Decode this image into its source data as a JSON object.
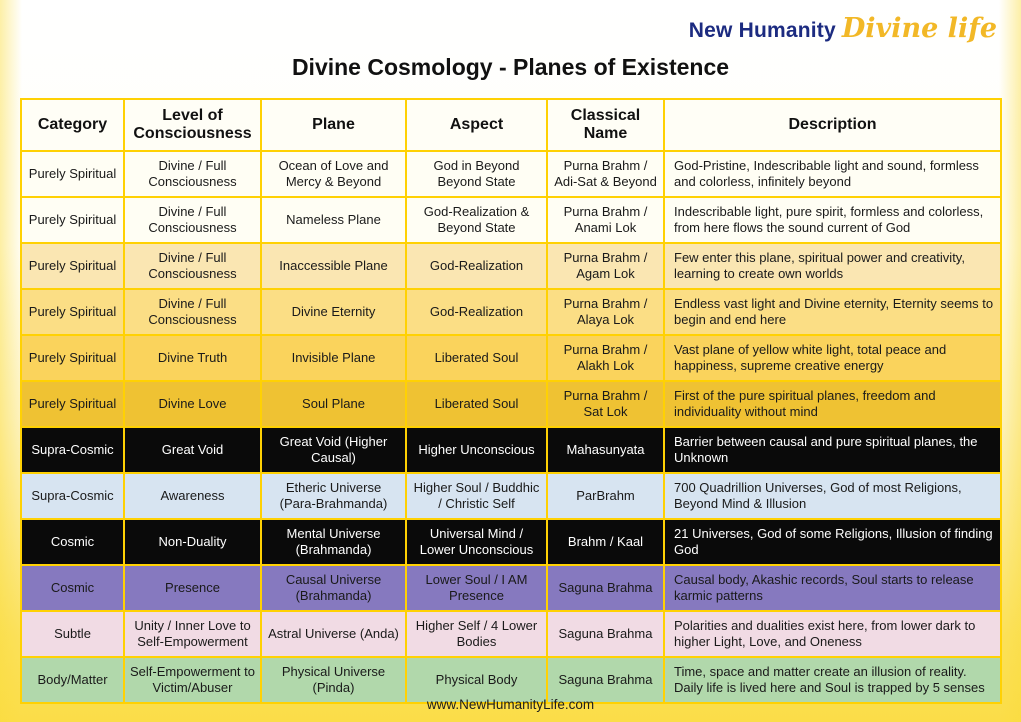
{
  "logo": {
    "brand": "New Humanity",
    "script": "Divine life",
    "brand_color": "#1c2b80",
    "script_color": "#f2b827"
  },
  "title": "Divine Cosmology - Planes of Existence",
  "footer": {
    "url": "www.NewHumanityLife.com"
  },
  "colors": {
    "table_border": "#ffd103",
    "page_yellow": "#fbdd48"
  },
  "table": {
    "headers": [
      "Category",
      "Level of Consciousness",
      "Plane",
      "Aspect",
      "Classical Name",
      "Description"
    ],
    "rows": [
      {
        "bg": "#fffef4",
        "fg": "#1a1a1a",
        "cells": [
          "Purely Spiritual",
          "Divine / Full Consciousness",
          "Ocean of Love and Mercy & Beyond",
          "God in Beyond Beyond State",
          "Purna Brahm / Adi-Sat & Beyond",
          "God-Pristine, Indescribable light and sound, formless and colorless, infinitely beyond"
        ]
      },
      {
        "bg": "#fffef4",
        "fg": "#1a1a1a",
        "cells": [
          "Purely Spiritual",
          "Divine / Full Consciousness",
          "Nameless Plane",
          "God-Realization & Beyond State",
          "Purna Brahm / Anami Lok",
          "Indescribable light, pure spirit, formless and colorless, from here flows the sound current of God"
        ]
      },
      {
        "bg": "#fae6b2",
        "fg": "#1a1a1a",
        "cells": [
          "Purely Spiritual",
          "Divine / Full Consciousness",
          "Inaccessible Plane",
          "God-Realization",
          "Purna Brahm / Agam Lok",
          "Few enter this plane, spiritual power and creativity, learning to create own worlds"
        ]
      },
      {
        "bg": "#fbde85",
        "fg": "#1a1a1a",
        "cells": [
          "Purely Spiritual",
          "Divine / Full Consciousness",
          "Divine Eternity",
          "God-Realization",
          "Purna Brahm / Alaya Lok",
          "Endless vast light and Divine eternity, Eternity seems to begin and end here"
        ]
      },
      {
        "bg": "#fad35c",
        "fg": "#1a1a1a",
        "cells": [
          "Purely Spiritual",
          "Divine Truth",
          "Invisible Plane",
          "Liberated Soul",
          "Purna Brahm / Alakh Lok",
          "Vast plane of yellow white light, total peace and happiness, supreme creative energy"
        ]
      },
      {
        "bg": "#efc233",
        "fg": "#1a1a1a",
        "cells": [
          "Purely Spiritual",
          "Divine Love",
          "Soul Plane",
          "Liberated Soul",
          "Purna Brahm / Sat Lok",
          "First of the pure spiritual planes, freedom and individuality without mind"
        ]
      },
      {
        "bg": "#0a0a0a",
        "fg": "#ffffff",
        "cells": [
          "Supra-Cosmic",
          "Great Void",
          "Great Void (Higher Causal)",
          "Higher Unconscious",
          "Mahasunyata",
          "Barrier between causal and pure spiritual planes, the Unknown"
        ]
      },
      {
        "bg": "#d7e4f1",
        "fg": "#1a1a1a",
        "cells": [
          "Supra-Cosmic",
          "Awareness",
          "Etheric Universe (Para-Brahmanda)",
          "Higher Soul / Buddhic / Christic Self",
          "ParBrahm",
          "700 Quadrillion Universes, God of most Religions, Beyond Mind & Illusion"
        ]
      },
      {
        "bg": "#0a0a0a",
        "fg": "#ffffff",
        "cells": [
          "Cosmic",
          "Non-Duality",
          "Mental Universe (Brahmanda)",
          "Universal Mind / Lower Unconscious",
          "Brahm / Kaal",
          "21 Universes, God of some Religions, Illusion of finding God"
        ]
      },
      {
        "bg": "#8679bf",
        "fg": "#1a1a1a",
        "cells": [
          "Cosmic",
          "Presence",
          "Causal Universe (Brahmanda)",
          "Lower Soul / I AM Presence",
          "Saguna Brahma",
          "Causal body, Akashic records, Soul starts to release karmic patterns"
        ]
      },
      {
        "bg": "#f1dbe4",
        "fg": "#1a1a1a",
        "cells": [
          "Subtle",
          "Unity / Inner Love to Self-Empowerment",
          "Astral Universe (Anda)",
          "Higher Self / 4 Lower Bodies",
          "Saguna Brahma",
          "Polarities and dualities exist here, from lower dark to higher Light, Love, and Oneness"
        ]
      },
      {
        "bg": "#b1d8ab",
        "fg": "#1a1a1a",
        "cells": [
          "Body/Matter",
          "Self-Empowerment to Victim/Abuser",
          "Physical Universe (Pinda)",
          "Physical Body",
          "Saguna Brahma",
          "Time, space and matter create an illusion of reality. Daily life is lived here and Soul is trapped by 5 senses"
        ]
      }
    ]
  }
}
